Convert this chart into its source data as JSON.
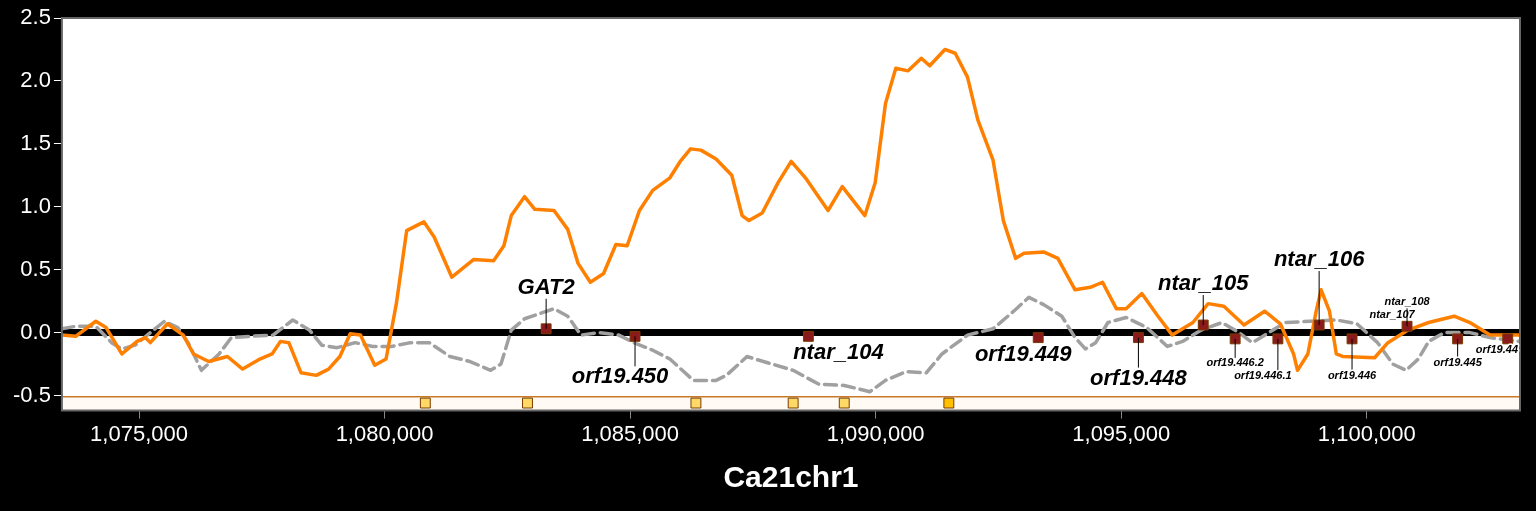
{
  "chart_data": {
    "type": "line",
    "xlabel": "Ca21chr1",
    "xlim": [
      1073430,
      1103120
    ],
    "xticks": [
      {
        "value": 1075000,
        "label": "1,075,000"
      },
      {
        "value": 1080000,
        "label": "1,080,000"
      },
      {
        "value": 1085000,
        "label": "1,085,000"
      },
      {
        "value": 1090000,
        "label": "1,090,000"
      },
      {
        "value": 1095000,
        "label": "1,095,000"
      },
      {
        "value": 1100000,
        "label": "1,100,000"
      }
    ],
    "ylim": [
      -0.62,
      2.5
    ],
    "yticks": [
      {
        "value": -0.5,
        "label": "-0.5"
      },
      {
        "value": 0,
        "label": "0.0"
      },
      {
        "value": 0.5,
        "label": "0.5"
      },
      {
        "value": 1,
        "label": "1.0"
      },
      {
        "value": 1.5,
        "label": "1.5"
      },
      {
        "value": 2,
        "label": "2.0"
      },
      {
        "value": 2.5,
        "label": "2.5"
      }
    ],
    "grid": false,
    "series": [
      {
        "type": "line",
        "color": "#ff8000",
        "line_style": "solid",
        "marker": "none",
        "x": [
          1073430,
          1073710,
          1074120,
          1074330,
          1074650,
          1074960,
          1075130,
          1075230,
          1075580,
          1075900,
          1076110,
          1076420,
          1076800,
          1077110,
          1077460,
          1077710,
          1077880,
          1078050,
          1078300,
          1078610,
          1078860,
          1079090,
          1079300,
          1079510,
          1079800,
          1080030,
          1080240,
          1080450,
          1080800,
          1081010,
          1081370,
          1081810,
          1082220,
          1082430,
          1082580,
          1082850,
          1083060,
          1083450,
          1083730,
          1083940,
          1084190,
          1084460,
          1084710,
          1084940,
          1085190,
          1085460,
          1085810,
          1086020,
          1086230,
          1086440,
          1086750,
          1087070,
          1087280,
          1087420,
          1087690,
          1088010,
          1088280,
          1088570,
          1089030,
          1089320,
          1089780,
          1089990,
          1090200,
          1090410,
          1090660,
          1090930,
          1091100,
          1091410,
          1091620,
          1091870,
          1092080,
          1092390,
          1092600,
          1092850,
          1093020,
          1093430,
          1093710,
          1094060,
          1094370,
          1094620,
          1094900,
          1095100,
          1095420,
          1095730,
          1096040,
          1096460,
          1096770,
          1097090,
          1097500,
          1097920,
          1098240,
          1098510,
          1098590,
          1098800,
          1098970,
          1099070,
          1099240,
          1099380,
          1099510,
          1100160,
          1100430,
          1100840,
          1101260,
          1101780,
          1102100,
          1102510,
          1103120
        ],
        "values": [
          -0.02,
          -0.03,
          0.09,
          0.04,
          -0.17,
          -0.07,
          -0.04,
          -0.08,
          0.07,
          -0.02,
          -0.17,
          -0.23,
          -0.19,
          -0.29,
          -0.21,
          -0.17,
          -0.07,
          -0.08,
          -0.32,
          -0.34,
          -0.29,
          -0.19,
          -0.01,
          -0.02,
          -0.26,
          -0.21,
          0.23,
          0.81,
          0.88,
          0.76,
          0.44,
          0.58,
          0.57,
          0.69,
          0.93,
          1.08,
          0.98,
          0.97,
          0.82,
          0.55,
          0.4,
          0.47,
          0.7,
          0.69,
          0.97,
          1.13,
          1.23,
          1.36,
          1.46,
          1.45,
          1.38,
          1.25,
          0.93,
          0.89,
          0.95,
          1.19,
          1.36,
          1.23,
          0.97,
          1.16,
          0.93,
          1.19,
          1.82,
          2.1,
          2.08,
          2.18,
          2.12,
          2.25,
          2.22,
          2.03,
          1.69,
          1.37,
          0.89,
          0.59,
          0.63,
          0.64,
          0.59,
          0.34,
          0.36,
          0.4,
          0.19,
          0.19,
          0.31,
          0.14,
          -0.02,
          0.08,
          0.23,
          0.21,
          0.06,
          0.17,
          0.07,
          -0.17,
          -0.3,
          -0.17,
          0.17,
          0.34,
          0.17,
          -0.17,
          -0.19,
          -0.2,
          -0.08,
          0.02,
          0.08,
          0.13,
          0.08,
          -0.02,
          -0.02
        ]
      },
      {
        "type": "line",
        "color": "#a0a0a0",
        "line_style": "dashed",
        "marker": "none",
        "x": [
          1073430,
          1073710,
          1074120,
          1074440,
          1074650,
          1074920,
          1075230,
          1075520,
          1075790,
          1076000,
          1076270,
          1076630,
          1076880,
          1077250,
          1077730,
          1078130,
          1078470,
          1078720,
          1079030,
          1079400,
          1079760,
          1080140,
          1080530,
          1080910,
          1081330,
          1081740,
          1082160,
          1082370,
          1082580,
          1082850,
          1083450,
          1083730,
          1084000,
          1084350,
          1084770,
          1085080,
          1085460,
          1085810,
          1086290,
          1086750,
          1086960,
          1087380,
          1087800,
          1088320,
          1088840,
          1089360,
          1089880,
          1090200,
          1090620,
          1091030,
          1091350,
          1091870,
          1092390,
          1092810,
          1093120,
          1093430,
          1093790,
          1094060,
          1094270,
          1094480,
          1094730,
          1095100,
          1095520,
          1095940,
          1096250,
          1096630,
          1097050,
          1097400,
          1097670,
          1098340,
          1099380,
          1099800,
          1100220,
          1100530,
          1100800,
          1101050,
          1101260,
          1101580,
          1102100,
          1102510,
          1103120
        ],
        "values": [
          0.03,
          0.05,
          0.05,
          -0.08,
          -0.13,
          -0.1,
          0.0,
          0.09,
          0.04,
          -0.08,
          -0.3,
          -0.17,
          -0.04,
          -0.03,
          -0.02,
          0.1,
          0.02,
          -0.1,
          -0.12,
          -0.08,
          -0.11,
          -0.11,
          -0.08,
          -0.08,
          -0.19,
          -0.23,
          -0.3,
          -0.25,
          0.02,
          0.11,
          0.19,
          0.13,
          -0.02,
          0.0,
          -0.02,
          -0.08,
          -0.14,
          -0.21,
          -0.38,
          -0.38,
          -0.34,
          -0.19,
          -0.24,
          -0.3,
          -0.41,
          -0.42,
          -0.47,
          -0.38,
          -0.31,
          -0.32,
          -0.17,
          -0.02,
          0.03,
          0.17,
          0.28,
          0.22,
          0.13,
          -0.04,
          -0.13,
          -0.08,
          0.08,
          0.12,
          0.04,
          -0.11,
          -0.07,
          0.02,
          0.08,
          0.0,
          -0.08,
          0.08,
          0.1,
          0.07,
          -0.08,
          -0.25,
          -0.3,
          -0.21,
          -0.07,
          0.0,
          0.0,
          -0.04,
          -0.07
        ]
      },
      {
        "type": "scatter",
        "color": "#8b1a1a",
        "marker": "square",
        "x": [
          1083290,
          1085100,
          1088630,
          1093310,
          1095350,
          1096670,
          1097320,
          1098190,
          1099030,
          1099700,
          1100820,
          1101850,
          1102870
        ],
        "values": [
          0.03,
          -0.03,
          -0.03,
          -0.04,
          -0.04,
          0.06,
          -0.05,
          -0.05,
          0.06,
          -0.05,
          0.05,
          -0.05,
          -0.05
        ]
      },
      {
        "type": "scatter",
        "marker": "square",
        "colors": [
          "#ffd966",
          "#ffd966",
          "#ffd966",
          "#ffd966",
          "#ffd966",
          "#ffc000"
        ],
        "x": [
          1080830,
          1082910,
          1086340,
          1088320,
          1089360,
          1091490
        ],
        "values": [
          -0.56,
          -0.56,
          -0.56,
          -0.56,
          -0.56,
          -0.56
        ]
      }
    ],
    "ref_lines": [
      {
        "axis": "y",
        "value": 0,
        "color": "#000000"
      },
      {
        "axis": "y",
        "value": -0.51,
        "color": "#c87828"
      }
    ],
    "bands": [
      {
        "axis": "y",
        "from": -0.62,
        "to": -0.51,
        "color": "#fffaf3"
      }
    ],
    "annotations": [
      {
        "text": "GAT2",
        "x": 1083290,
        "y": 0.03
      },
      {
        "text": "orf19.450",
        "x": 1085100,
        "y": -0.03
      },
      {
        "text": "ntar_104",
        "x": 1088630,
        "y": -0.03
      },
      {
        "text": "orf19.449",
        "x": 1093310,
        "y": -0.04
      },
      {
        "text": "orf19.448",
        "x": 1095350,
        "y": -0.04
      },
      {
        "text": "ntar_105",
        "x": 1096670,
        "y": 0.06
      },
      {
        "text": "ntar_106",
        "x": 1099030,
        "y": 0.06
      },
      {
        "text": "orf19.446.2",
        "x": 1097320,
        "y": -0.05
      },
      {
        "text": "orf19.446.1",
        "x": 1098190,
        "y": -0.05
      },
      {
        "text": "orf19.446",
        "x": 1099700,
        "y": -0.05
      },
      {
        "text": "orf19.44",
        "x": 1102870,
        "y": -0.05
      },
      {
        "text": "orf19.445",
        "x": 1101850,
        "y": -0.05
      },
      {
        "text": "ntar_107",
        "x": 1100820,
        "y": 0.05
      },
      {
        "text": "ntar_108",
        "x": 1100820,
        "y": 0.05
      }
    ]
  }
}
